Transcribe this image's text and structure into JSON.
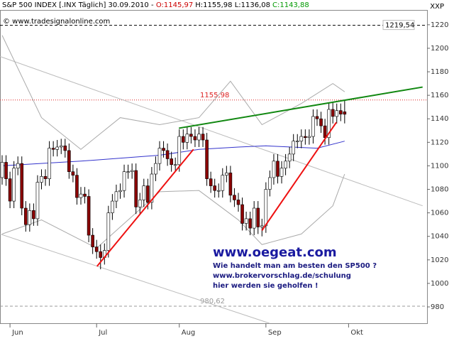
{
  "chart_data": {
    "type": "candlestick",
    "header": [
      {
        "text": "S&P 500 INDEX [.INX Täglich] 30.09.2010 -",
        "color": "#000000"
      },
      {
        "text": "O:1145,97",
        "color": "#cc0000"
      },
      {
        "text": "H:1155,98 L:1136,08",
        "color": "#000000"
      },
      {
        "text": "C:1143,88",
        "color": "#009900"
      }
    ],
    "corner_label": "XXP",
    "copyright": "© www.tradesignalonline.com",
    "ad": {
      "title": "www.oegeat.com",
      "lines": [
        "Wie handelt man am besten den SP500 ?",
        "www.brokervorschlag.de/schulung",
        "hier werden sie geholfen !"
      ]
    },
    "xlim": [
      -0.54,
      107.93
    ],
    "xticks": [
      {
        "value": 2,
        "label": "Jun"
      },
      {
        "value": 24,
        "label": "Jul"
      },
      {
        "value": 45,
        "label": "Aug"
      },
      {
        "value": 67,
        "label": "Sep"
      },
      {
        "value": 88,
        "label": "Okt"
      }
    ],
    "ylim": [
      966.1,
      1232.6
    ],
    "yticks": [
      980,
      1000,
      1020,
      1040,
      1060,
      1080,
      1100,
      1120,
      1140,
      1160,
      1180,
      1200,
      1220
    ],
    "grid": false,
    "up_color": "#ffffff",
    "down_color": "#8b0000",
    "open": [
      1090,
      1103,
      1089,
      1070,
      1098,
      1102,
      1064,
      1050,
      1062,
      1055,
      1086,
      1091,
      1089,
      1115,
      1114,
      1116,
      1117,
      1113,
      1095,
      1092,
      1073,
      1076,
      1074,
      1041,
      1031,
      1027,
      1022,
      1028,
      1060,
      1070,
      1078,
      1079,
      1095,
      1095,
      1096,
      1065,
      1071,
      1083,
      1069,
      1093,
      1102,
      1115,
      1113,
      1106,
      1101,
      1101,
      1125,
      1120,
      1127,
      1125,
      1122,
      1127,
      1122,
      1089,
      1083,
      1079,
      1079,
      1092,
      1094,
      1075,
      1071,
      1067,
      1051,
      1055,
      1047,
      1064,
      1048,
      1049,
      1080,
      1090,
      1104,
      1091,
      1098,
      1104,
      1110,
      1121,
      1121,
      1125,
      1124,
      1125,
      1142,
      1140,
      1134,
      1124,
      1148,
      1142,
      1147,
      1145.97
    ],
    "high": [
      1109,
      1109,
      1095,
      1104,
      1108,
      1108,
      1070,
      1068,
      1068,
      1092,
      1097,
      1097,
      1121,
      1121,
      1122,
      1123,
      1123,
      1119,
      1101,
      1098,
      1082,
      1082,
      1080,
      1047,
      1037,
      1033,
      1034,
      1066,
      1076,
      1084,
      1085,
      1101,
      1101,
      1102,
      1102,
      1077,
      1089,
      1089,
      1099,
      1108,
      1121,
      1121,
      1119,
      1112,
      1107,
      1131,
      1131,
      1133,
      1133,
      1131,
      1133,
      1133,
      1128,
      1095,
      1089,
      1085,
      1098,
      1100,
      1100,
      1081,
      1077,
      1073,
      1061,
      1061,
      1070,
      1070,
      1055,
      1086,
      1096,
      1110,
      1110,
      1104,
      1110,
      1116,
      1127,
      1127,
      1131,
      1131,
      1131,
      1148,
      1148,
      1146,
      1140,
      1154,
      1154,
      1153,
      1153,
      1155.98
    ],
    "low": [
      1084,
      1083,
      1064,
      1064,
      1092,
      1058,
      1044,
      1044,
      1049,
      1049,
      1080,
      1083,
      1083,
      1108,
      1108,
      1110,
      1107,
      1089,
      1086,
      1067,
      1067,
      1068,
      1035,
      1025,
      1021,
      1012,
      1016,
      1022,
      1054,
      1064,
      1072,
      1073,
      1089,
      1089,
      1059,
      1059,
      1065,
      1063,
      1063,
      1087,
      1096,
      1107,
      1100,
      1095,
      1095,
      1095,
      1114,
      1114,
      1119,
      1116,
      1116,
      1116,
      1083,
      1077,
      1073,
      1073,
      1073,
      1086,
      1069,
      1065,
      1061,
      1045,
      1045,
      1041,
      1041,
      1042,
      1040,
      1043,
      1074,
      1084,
      1085,
      1085,
      1092,
      1098,
      1104,
      1115,
      1115,
      1118,
      1118,
      1119,
      1134,
      1128,
      1118,
      1118,
      1136,
      1136,
      1138,
      1136.08
    ],
    "close": [
      1103,
      1089,
      1070,
      1098,
      1102,
      1064,
      1050,
      1062,
      1055,
      1086,
      1091,
      1089,
      1115,
      1114,
      1116,
      1117,
      1113,
      1095,
      1092,
      1073,
      1076,
      1074,
      1041,
      1031,
      1027,
      1022,
      1028,
      1060,
      1070,
      1078,
      1079,
      1095,
      1095,
      1096,
      1065,
      1071,
      1083,
      1069,
      1093,
      1102,
      1115,
      1113,
      1106,
      1101,
      1101,
      1125,
      1120,
      1127,
      1125,
      1122,
      1127,
      1122,
      1089,
      1083,
      1079,
      1079,
      1092,
      1094,
      1075,
      1071,
      1067,
      1051,
      1055,
      1047,
      1064,
      1048,
      1049,
      1080,
      1090,
      1104,
      1091,
      1098,
      1104,
      1110,
      1121,
      1121,
      1125,
      1124,
      1125,
      1142,
      1140,
      1134,
      1124,
      1148,
      1142,
      1147,
      1144,
      1143.88
    ],
    "lines": [
      {
        "color": "#3333cc",
        "x": [
          0,
          20,
          40,
          50,
          60,
          67,
          80,
          87
        ],
        "values": [
          1100,
          1104,
          1109,
          1114,
          1116,
          1117,
          1115,
          1121
        ]
      },
      {
        "color": "#aaaaaa",
        "x": [
          0,
          10,
          20,
          30,
          40,
          50,
          58,
          66,
          76,
          84,
          87
        ],
        "values": [
          1211,
          1141,
          1114,
          1141,
          1135,
          1141,
          1172,
          1135,
          1153,
          1170,
          1163
        ]
      },
      {
        "color": "#aaaaaa",
        "x": [
          0,
          10,
          24,
          30,
          40,
          50,
          60,
          66,
          76,
          84,
          87
        ],
        "values": [
          1042,
          1054,
          1030,
          1048,
          1078,
          1079,
          1054,
          1033,
          1042,
          1066,
          1093
        ]
      }
    ],
    "trendlines": [
      {
        "color": "#bbbbbb",
        "x": [
          -0.54,
          106.8
        ],
        "values": [
          1193,
          1066
        ]
      },
      {
        "color": "#bbbbbb",
        "x": [
          -0.54,
          67.9
        ],
        "values": [
          1042,
          966.1
        ]
      },
      {
        "color": "#ee1111",
        "x": [
          24.1,
          48.6
        ],
        "values": [
          1014.5,
          1114
        ]
      },
      {
        "color": "#ee1111",
        "x": [
          66,
          84.9
        ],
        "values": [
          1045,
          1137
        ]
      },
      {
        "color": "#118811",
        "x": [
          44.9,
          106.8
        ],
        "values": [
          1132,
          1167
        ]
      }
    ],
    "hlines": [
      {
        "value": 1219.54,
        "label": "1219,54",
        "color": "#000000"
      },
      {
        "value": 1155.98,
        "label": "1155,98",
        "color": "#dd2222"
      },
      {
        "value": 980.62,
        "label": "980,62",
        "color": "#999999"
      }
    ]
  }
}
